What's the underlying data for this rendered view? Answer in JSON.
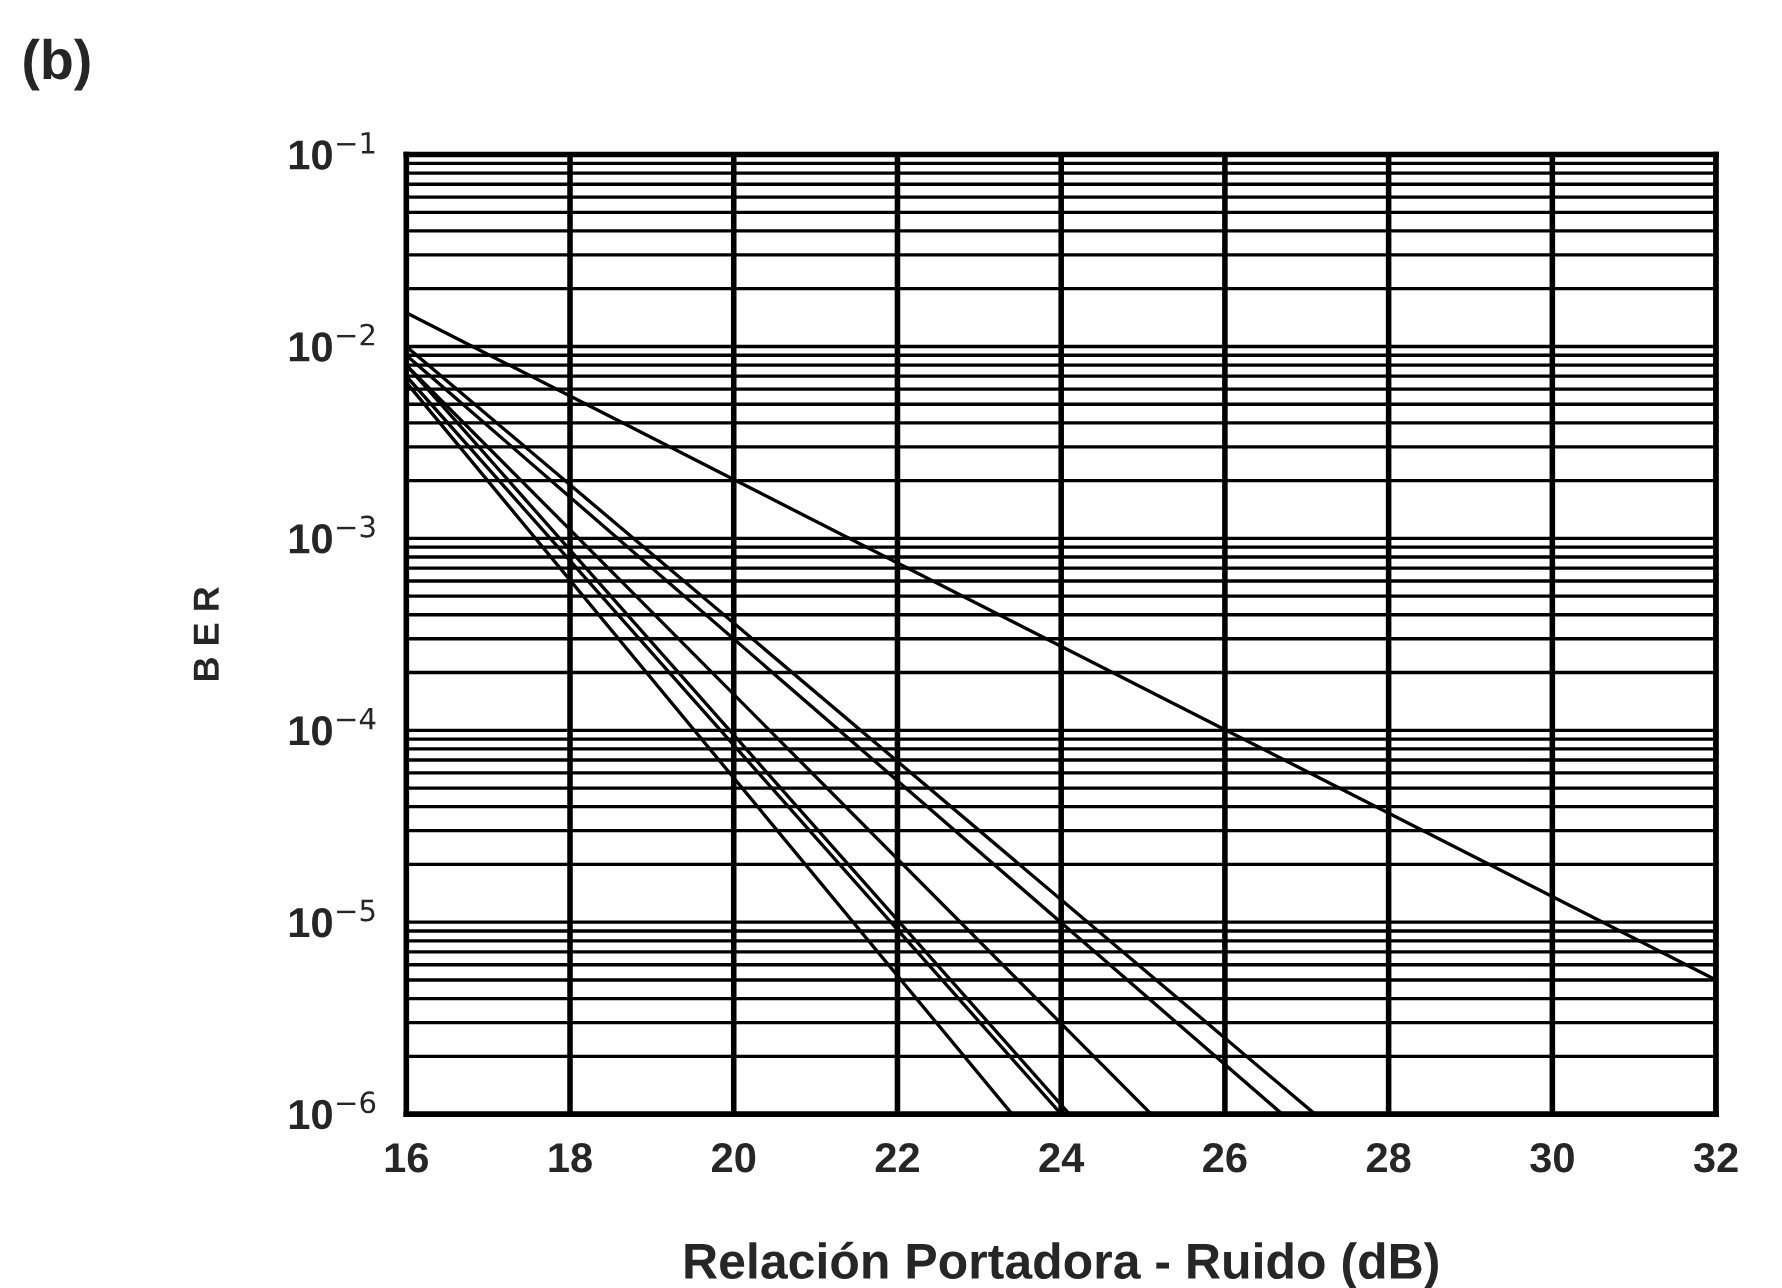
{
  "chart_data": {
    "type": "line",
    "xlabel": "Relación Portadora - Ruido (dB)",
    "ylabel": "B E R",
    "annotations": [
      "(b)"
    ],
    "log": "y",
    "grid": true,
    "marker": "none",
    "line_style": "solid",
    "xlim": [
      16,
      32
    ],
    "xticks": [
      16,
      18,
      20,
      22,
      24,
      26,
      28,
      30,
      32
    ],
    "ylim": [
      1e-06,
      0.1
    ],
    "yticks": [
      {
        "value": 0.1,
        "label": "10$^{−1}$"
      },
      {
        "value": 0.01,
        "label": "10$^{−2}$"
      },
      {
        "value": 0.001,
        "label": "10$^{−3}$"
      },
      {
        "value": 0.0001,
        "label": "10$^{−4}$"
      },
      {
        "value": 1e-05,
        "label": "10$^{−5}$"
      },
      {
        "value": 1e-06,
        "label": "10$^{−6}$"
      }
    ],
    "series": [
      {
        "color": "#000000",
        "x": [
          16,
          32
        ],
        "values": [
          0.015,
          5e-06
        ]
      },
      {
        "color": "#000000",
        "x": [
          16,
          23.4
        ],
        "values": [
          0.0065,
          1e-06
        ]
      },
      {
        "color": "#000000",
        "x": [
          16,
          24.0
        ],
        "values": [
          0.007,
          1e-06
        ]
      },
      {
        "color": "#000000",
        "x": [
          16,
          24.1
        ],
        "values": [
          0.008,
          1e-06
        ]
      },
      {
        "color": "#000000",
        "x": [
          16,
          25.1
        ],
        "values": [
          0.008,
          1e-06
        ]
      },
      {
        "color": "#000000",
        "x": [
          16,
          26.7
        ],
        "values": [
          0.009,
          1e-06
        ]
      },
      {
        "color": "#000000",
        "x": [
          16,
          27.1
        ],
        "values": [
          0.01,
          1e-06
        ]
      }
    ]
  }
}
